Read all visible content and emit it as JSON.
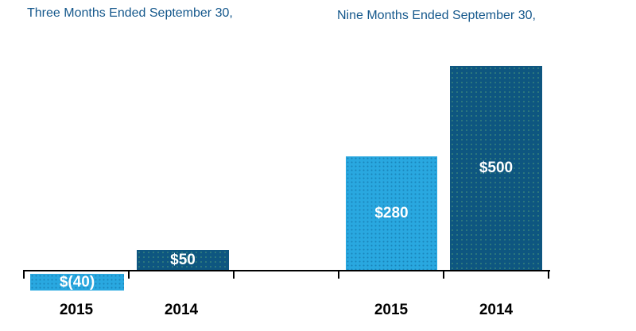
{
  "page": {
    "background_color": "#ffffff"
  },
  "chart_data": {
    "type": "bar",
    "group_titles": [
      "Three Months Ended September 30,",
      "Nine Months Ended September 30,"
    ],
    "bars": [
      {
        "group": "Three Months Ended September 30,",
        "category": "2015",
        "value": -40,
        "label": "$(40)",
        "series": "2015"
      },
      {
        "group": "Three Months Ended September 30,",
        "category": "2014",
        "value": 50,
        "label": "$50",
        "series": "2014"
      },
      {
        "group": "Nine Months Ended September 30,",
        "category": "2015",
        "value": 280,
        "label": "$280",
        "series": "2015"
      },
      {
        "group": "Nine Months Ended September 30,",
        "category": "2014",
        "value": 500,
        "label": "$500",
        "series": "2014"
      }
    ],
    "x_tick_labels": [
      "2015",
      "2014",
      "2015",
      "2014"
    ],
    "value_axis": {
      "min": -40,
      "max": 500,
      "labels_visible": false
    },
    "grid": false,
    "legend": false,
    "colors": {
      "series_2015": "#29a8e0",
      "series_2014": "#0e5680",
      "title_text": "#15588c",
      "bar_label_text": "#ffffff",
      "axis": "#000000",
      "x_tick_label_text": "#000000"
    }
  }
}
